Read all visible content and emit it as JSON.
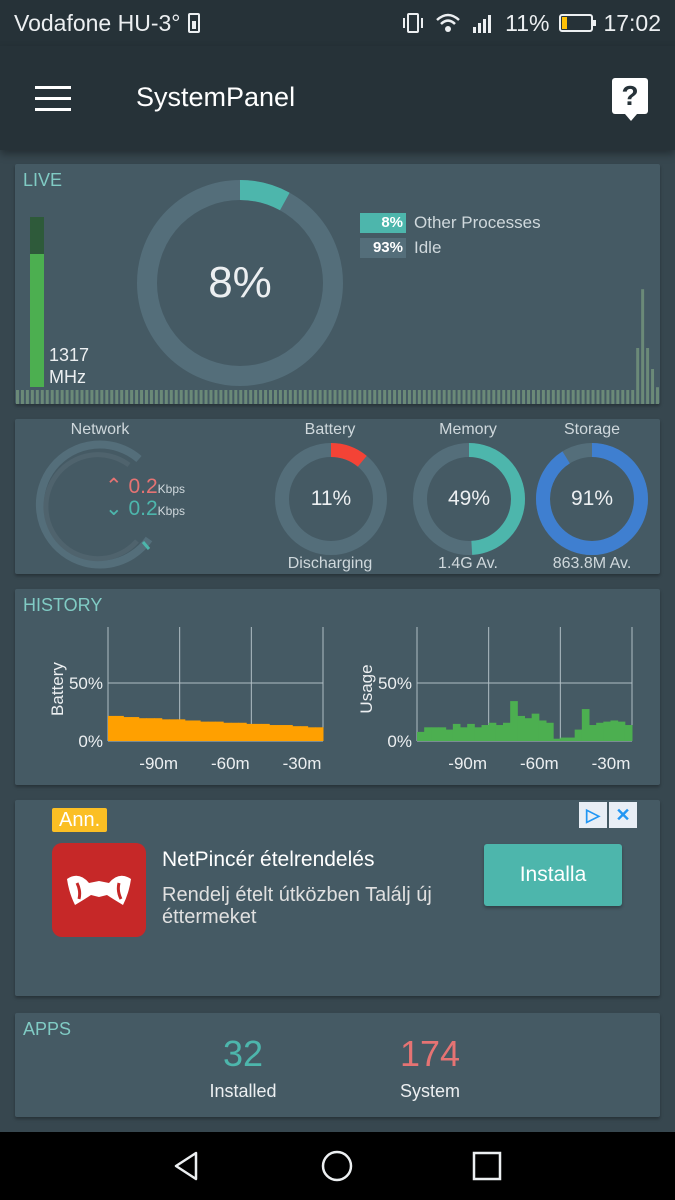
{
  "status_bar": {
    "carrier": "Vodafone HU-3°",
    "battery_percent": "11%",
    "time": "17:02"
  },
  "app_bar": {
    "title": "SystemPanel",
    "help_label": "?"
  },
  "live": {
    "title": "LIVE",
    "cpu_percent": "8%",
    "cpu_fraction": 0.08,
    "freq_value": "1317",
    "freq_unit": "MHz",
    "freq_fraction": 0.78,
    "legend": [
      {
        "value": "8%",
        "label": "Other Processes",
        "color": "#4db6ac"
      },
      {
        "value": "93%",
        "label": "Idle",
        "color": "#546e7a"
      }
    ],
    "history_bars": [
      0.1,
      0.1,
      0.1,
      0.1,
      0.1,
      0.1,
      0.1,
      0.1,
      0.1,
      0.1,
      0.1,
      0.1,
      0.1,
      0.1,
      0.1,
      0.1,
      0.1,
      0.1,
      0.1,
      0.1,
      0.1,
      0.1,
      0.1,
      0.1,
      0.1,
      0.1,
      0.1,
      0.1,
      0.1,
      0.1,
      0.1,
      0.1,
      0.1,
      0.1,
      0.1,
      0.1,
      0.1,
      0.1,
      0.1,
      0.1,
      0.1,
      0.1,
      0.1,
      0.1,
      0.1,
      0.1,
      0.1,
      0.1,
      0.1,
      0.1,
      0.1,
      0.1,
      0.1,
      0.1,
      0.1,
      0.1,
      0.1,
      0.1,
      0.1,
      0.1,
      0.1,
      0.1,
      0.1,
      0.1,
      0.1,
      0.1,
      0.1,
      0.1,
      0.1,
      0.1,
      0.1,
      0.1,
      0.1,
      0.1,
      0.1,
      0.1,
      0.1,
      0.1,
      0.1,
      0.1,
      0.1,
      0.1,
      0.1,
      0.1,
      0.1,
      0.1,
      0.1,
      0.1,
      0.1,
      0.1,
      0.1,
      0.1,
      0.1,
      0.1,
      0.1,
      0.1,
      0.1,
      0.1,
      0.1,
      0.1,
      0.1,
      0.1,
      0.1,
      0.1,
      0.1,
      0.1,
      0.1,
      0.1,
      0.1,
      0.1,
      0.1,
      0.1,
      0.1,
      0.1,
      0.1,
      0.1,
      0.1,
      0.1,
      0.1,
      0.1,
      0.1,
      0.1,
      0.1,
      0.1,
      0.1,
      0.4,
      0.82,
      0.4,
      0.25,
      0.12
    ]
  },
  "stats": {
    "network": {
      "label": "Network",
      "up": "0.2",
      "down": "0.2",
      "unit": "Kbps"
    },
    "battery": {
      "label": "Battery",
      "value": "11%",
      "fraction": 0.11,
      "footer": "Discharging",
      "color": "#f44336"
    },
    "memory": {
      "label": "Memory",
      "value": "49%",
      "fraction": 0.49,
      "footer": "1.4G Av.",
      "color": "#4db6ac"
    },
    "storage": {
      "label": "Storage",
      "value": "91%",
      "fraction": 0.91,
      "footer": "863.8M Av.",
      "color": "#3f7fd0"
    }
  },
  "history": {
    "title": "HISTORY",
    "battery_chart": {
      "ylabel": "Battery",
      "yticks": [
        "50%",
        "0%"
      ],
      "xticks": [
        "-90m",
        "-60m",
        "-30m"
      ],
      "color": "#ffa000",
      "values": [
        22,
        22,
        21,
        21,
        20,
        20,
        20,
        19,
        19,
        19,
        18,
        18,
        17,
        17,
        17,
        16,
        16,
        16,
        15,
        15,
        15,
        14,
        14,
        14,
        13,
        13,
        12,
        12
      ]
    },
    "usage_chart": {
      "ylabel": "Usage",
      "yticks": [
        "50%",
        "0%"
      ],
      "xticks": [
        "-90m",
        "-60m",
        "-30m"
      ],
      "color": "#4caf50",
      "values": [
        8,
        12,
        12,
        12,
        10,
        15,
        12,
        15,
        12,
        14,
        16,
        14,
        16,
        35,
        22,
        20,
        24,
        18,
        16,
        2,
        3,
        3,
        10,
        28,
        14,
        16,
        17,
        18,
        17,
        14
      ]
    }
  },
  "ad": {
    "tag": "Ann.",
    "title": "NetPincér ételrendelés",
    "description": "Rendelj ételt útközben Találj új éttermeket",
    "install_label": "Installa",
    "choice_icon": "▷",
    "close_icon": "✕"
  },
  "apps": {
    "title": "APPS",
    "installed": {
      "value": "32",
      "label": "Installed",
      "color": "#4db6ac"
    },
    "system": {
      "value": "174",
      "label": "System",
      "color": "#e57373"
    }
  }
}
